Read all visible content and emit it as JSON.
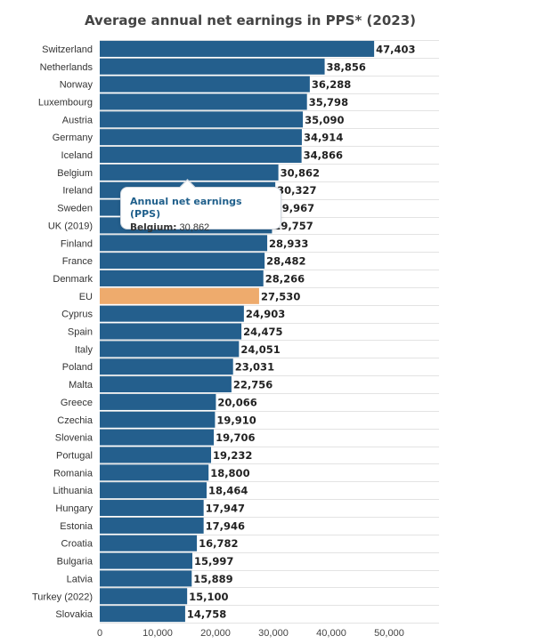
{
  "chart_data": {
    "type": "bar",
    "orientation": "horizontal",
    "title": "Average annual net earnings in PPS* (2023)",
    "categories": [
      "Switzerland",
      "Netherlands",
      "Norway",
      "Luxembourg",
      "Austria",
      "Germany",
      "Iceland",
      "Belgium",
      "Ireland",
      "Sweden",
      "UK (2019)",
      "Finland",
      "France",
      "Denmark",
      "EU",
      "Cyprus",
      "Spain",
      "Italy",
      "Poland",
      "Malta",
      "Greece",
      "Czechia",
      "Slovenia",
      "Portugal",
      "Romania",
      "Lithuania",
      "Hungary",
      "Estonia",
      "Croatia",
      "Bulgaria",
      "Latvia",
      "Turkey (2022)",
      "Slovakia"
    ],
    "values": [
      47403,
      38856,
      36288,
      35798,
      35090,
      34914,
      34866,
      30862,
      30327,
      29967,
      29757,
      28933,
      28482,
      28266,
      27530,
      24903,
      24475,
      24051,
      23031,
      22756,
      20066,
      19910,
      19706,
      19232,
      18800,
      18464,
      17947,
      17946,
      16782,
      15997,
      15889,
      15100,
      14758
    ],
    "value_labels": [
      "47,403",
      "38,856",
      "36,288",
      "35,798",
      "35,090",
      "34,914",
      "34,866",
      "30,862",
      "30,327",
      "29,967",
      "29,757",
      "28,933",
      "28,482",
      "28,266",
      "27,530",
      "24,903",
      "24,475",
      "24,051",
      "23,031",
      "22,756",
      "20,066",
      "19,910",
      "19,706",
      "19,232",
      "18,800",
      "18,464",
      "17,947",
      "17,946",
      "16,782",
      "15,997",
      "15,889",
      "15,100",
      "14,758"
    ],
    "highlight_category": "EU",
    "xlim": [
      0,
      58000
    ],
    "x_ticks": [
      0,
      10000,
      20000,
      30000,
      40000,
      50000
    ],
    "x_tick_labels": [
      "0",
      "10,000",
      "20,000",
      "30,000",
      "40,000",
      "50,000"
    ],
    "xlabel": "",
    "ylabel": "",
    "grid": true,
    "legend": "none",
    "colors": {
      "bar": "#245f8d",
      "highlight": "#eeab6d",
      "grid": "#e3e3e3"
    }
  },
  "tooltip": {
    "title": "Annual net earnings (PPS)",
    "category": "Belgium:",
    "value": "30,862"
  }
}
